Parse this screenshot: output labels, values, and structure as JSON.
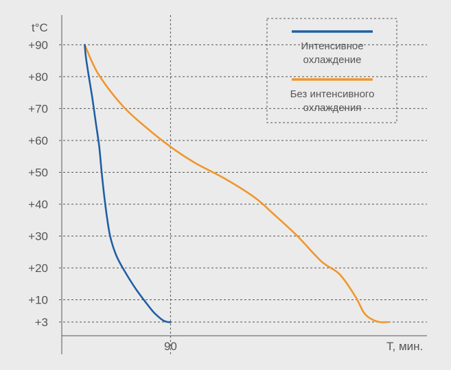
{
  "chart_data": {
    "type": "line",
    "ylabel": "t°C",
    "xlabel": "T, мин.",
    "y_ticks": [
      {
        "value": 90,
        "label": "+90"
      },
      {
        "value": 80,
        "label": "+80"
      },
      {
        "value": 70,
        "label": "+70"
      },
      {
        "value": 60,
        "label": "+60"
      },
      {
        "value": 50,
        "label": "+50"
      },
      {
        "value": 40,
        "label": "+40"
      },
      {
        "value": 30,
        "label": "+30"
      },
      {
        "value": 20,
        "label": "+20"
      },
      {
        "value": 10,
        "label": "+10"
      },
      {
        "value": 3,
        "label": "+3"
      }
    ],
    "x_ticks": [
      {
        "value": 90,
        "label": "90"
      }
    ],
    "xlim": [
      0,
      290
    ],
    "ylim": [
      -12,
      99
    ],
    "grid": "dashed horizontal at each y tick, dashed vertical at x = 90",
    "legend_position": "top-right",
    "series": [
      {
        "name": "Интенсивное охлаждение",
        "name_lines": [
          "Интенсивное",
          "охлаждение"
        ],
        "color": "#1f5fa3",
        "x": [
          19,
          20,
          22,
          25,
          28,
          31,
          33,
          35,
          37,
          40,
          45,
          52,
          62,
          74,
          79,
          84,
          88,
          90
        ],
        "y": [
          90,
          86,
          81,
          74,
          66,
          58,
          50,
          43,
          37,
          30,
          24,
          19,
          13,
          7,
          5,
          3.5,
          3,
          3
        ]
      },
      {
        "name": "Без интенсивного охлаждения",
        "name_lines": [
          "Без интенсивного",
          "охлаждения"
        ],
        "color": "#f0962a",
        "x": [
          19,
          30,
          50,
          70,
          90,
          110,
          135,
          160,
          175,
          195,
          215,
          230,
          243,
          250,
          256,
          263,
          270
        ],
        "y": [
          90,
          81,
          71,
          64,
          58,
          53,
          48,
          42,
          37,
          30,
          22,
          18,
          11,
          6,
          4,
          3,
          3
        ]
      }
    ]
  }
}
